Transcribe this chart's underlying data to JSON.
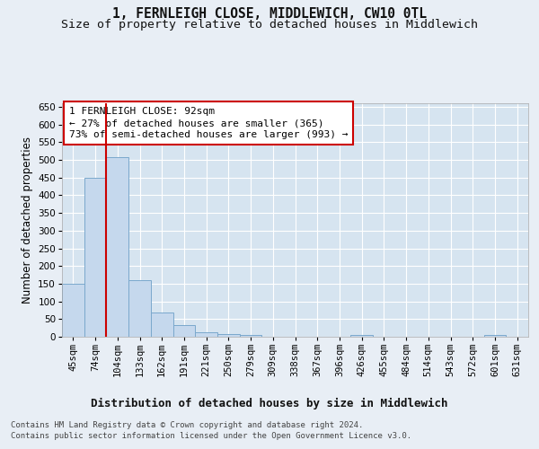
{
  "title": "1, FERNLEIGH CLOSE, MIDDLEWICH, CW10 0TL",
  "subtitle": "Size of property relative to detached houses in Middlewich",
  "xlabel": "Distribution of detached houses by size in Middlewich",
  "ylabel": "Number of detached properties",
  "categories": [
    "45sqm",
    "74sqm",
    "104sqm",
    "133sqm",
    "162sqm",
    "191sqm",
    "221sqm",
    "250sqm",
    "279sqm",
    "309sqm",
    "338sqm",
    "367sqm",
    "396sqm",
    "426sqm",
    "455sqm",
    "484sqm",
    "514sqm",
    "543sqm",
    "572sqm",
    "601sqm",
    "631sqm"
  ],
  "values": [
    150,
    450,
    507,
    160,
    68,
    33,
    13,
    7,
    5,
    0,
    0,
    0,
    0,
    6,
    0,
    0,
    0,
    0,
    0,
    5,
    0
  ],
  "bar_color": "#c5d8ed",
  "bar_edge_color": "#7aa8cc",
  "vline_color": "#cc0000",
  "annotation_text_line1": "1 FERNLEIGH CLOSE: 92sqm",
  "annotation_text_line2": "← 27% of detached houses are smaller (365)",
  "annotation_text_line3": "73% of semi-detached houses are larger (993) →",
  "annotation_box_color": "#ffffff",
  "annotation_box_edge": "#cc0000",
  "ylim": [
    0,
    660
  ],
  "yticks": [
    0,
    50,
    100,
    150,
    200,
    250,
    300,
    350,
    400,
    450,
    500,
    550,
    600,
    650
  ],
  "bg_color": "#e8eef5",
  "plot_bg_color": "#d6e4f0",
  "footer_line1": "Contains HM Land Registry data © Crown copyright and database right 2024.",
  "footer_line2": "Contains public sector information licensed under the Open Government Licence v3.0.",
  "title_fontsize": 10.5,
  "subtitle_fontsize": 9.5,
  "xlabel_fontsize": 9,
  "ylabel_fontsize": 8.5,
  "tick_fontsize": 7.5,
  "annot_fontsize": 8,
  "footer_fontsize": 6.5
}
